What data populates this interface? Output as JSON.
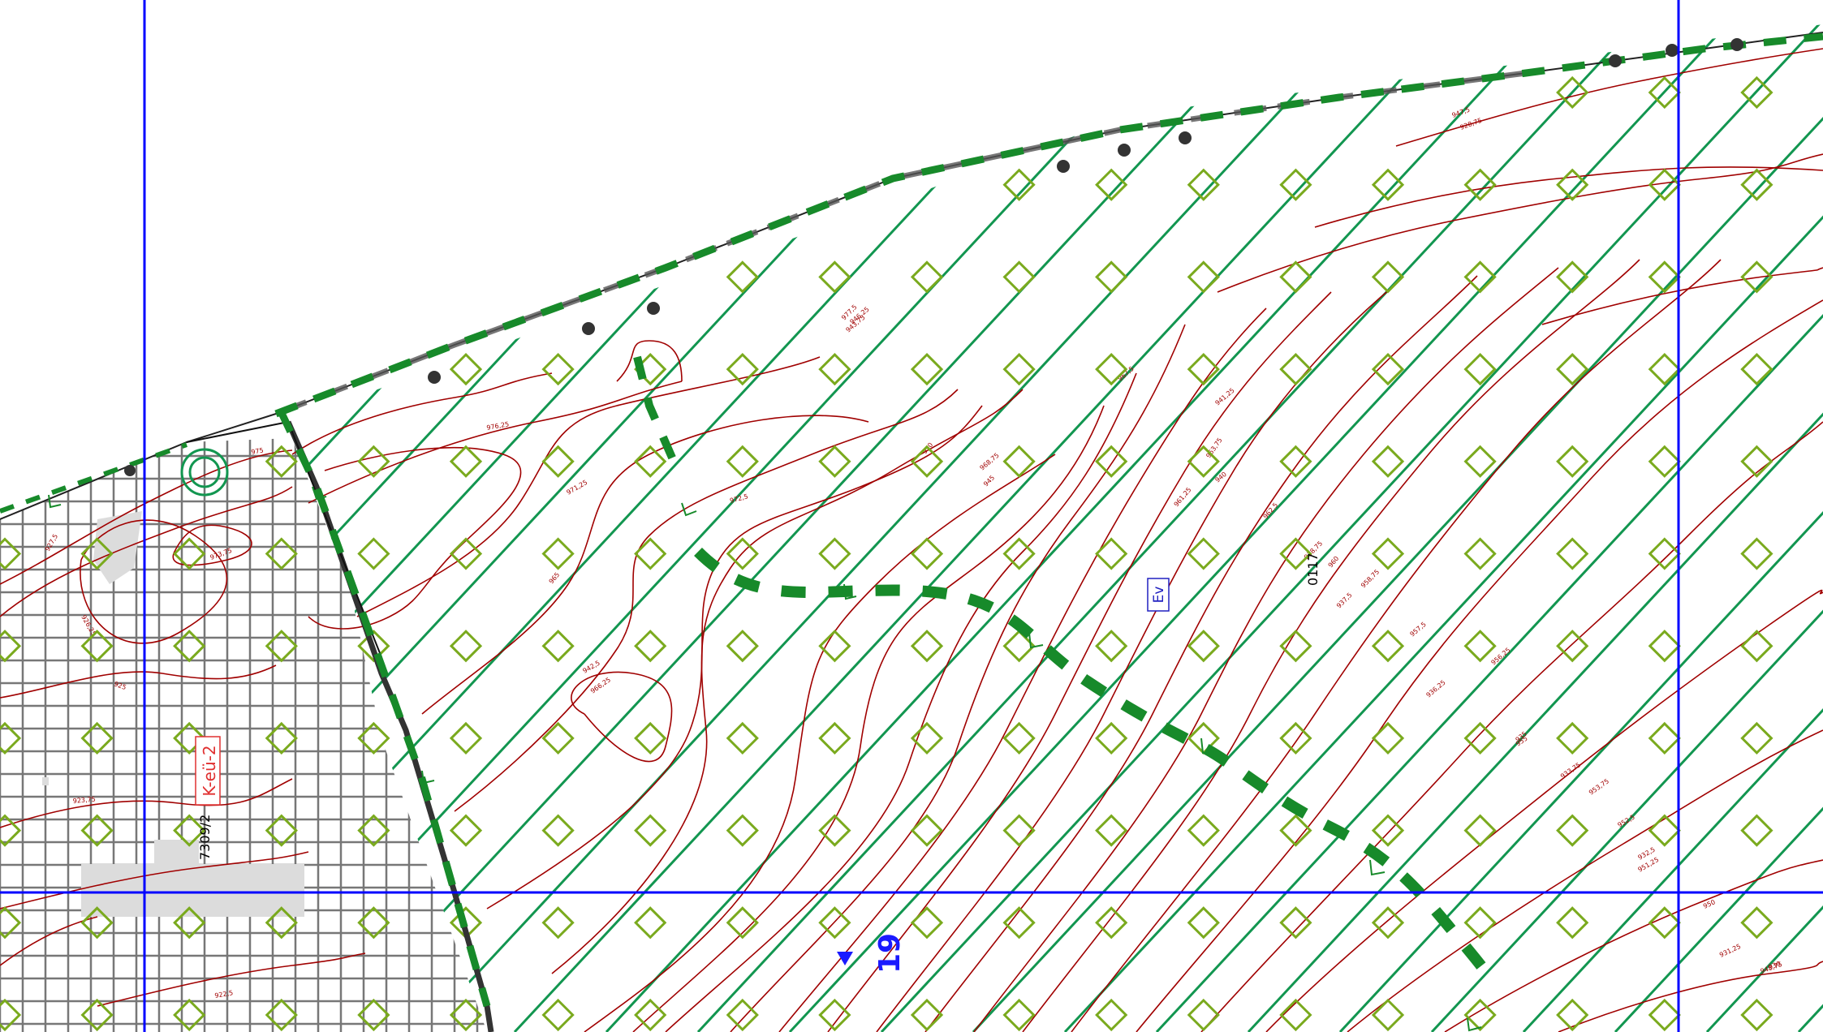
{
  "map": {
    "zone_label": "K-eü-2",
    "zone_label_color": "#e03030",
    "land_use_label": "Ev",
    "land_use_label_color": "#2020c0",
    "parcel_labels": [
      "7309/2",
      "0117"
    ],
    "grid_number": "19",
    "grid_number_color": "#1a1aff",
    "contour_labels": [
      "977,5",
      "976,25",
      "975",
      "973,75",
      "972,5",
      "971,25",
      "970",
      "968,75",
      "967,5",
      "966,25",
      "965",
      "963,75",
      "962,5",
      "961,25",
      "960",
      "958,75",
      "957,5",
      "956,25",
      "955",
      "953,75",
      "952,5",
      "951,25",
      "950",
      "948,75",
      "947,5",
      "946,25",
      "945",
      "943,75",
      "942,5",
      "941,25",
      "940",
      "938,75",
      "937,5",
      "936,25",
      "935",
      "933,75",
      "932,5",
      "931,25",
      "930",
      "928,75",
      "927,5",
      "926,25",
      "925",
      "923,75",
      "922,5"
    ],
    "colors": {
      "grid_line": "#0000ff",
      "contour": "#a00000",
      "hatch": "#129650",
      "diamond": "#7aaa1e",
      "dash_path": "#178a2a",
      "boundary": "#333333",
      "mesh": "#777777"
    },
    "symbols": [
      "diamond-symbol",
      "hatch-line",
      "contour-line",
      "dashed-path",
      "boundary-line",
      "arrow-marker"
    ]
  }
}
